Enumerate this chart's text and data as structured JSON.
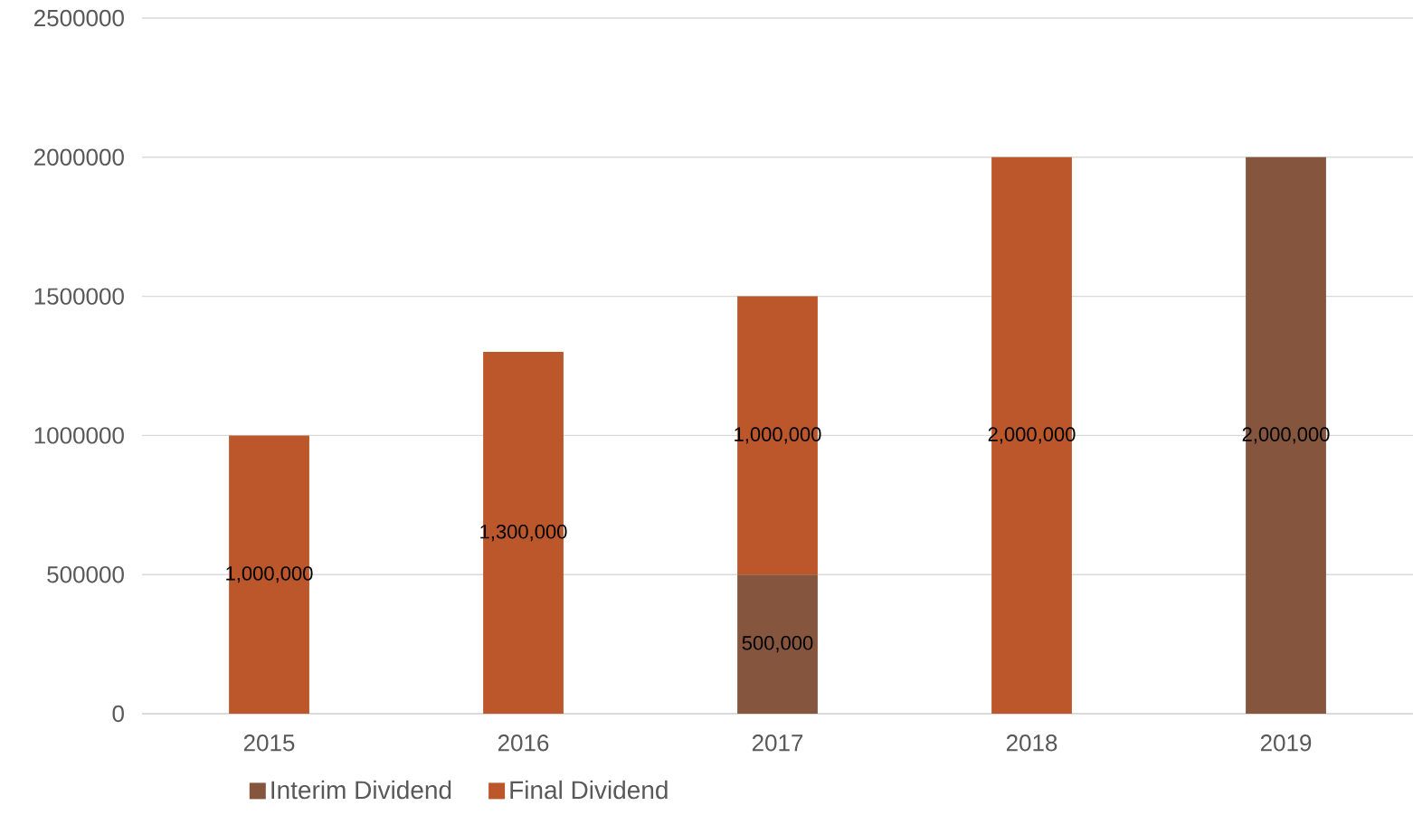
{
  "chart_data": {
    "type": "bar",
    "stacked": true,
    "categories": [
      "2015",
      "2016",
      "2017",
      "2018",
      "2019"
    ],
    "series": [
      {
        "name": "Interim Dividend",
        "color": "#85553d",
        "values": [
          null,
          null,
          500000,
          null,
          2000000
        ],
        "value_labels": [
          null,
          null,
          "500,000",
          null,
          "2,000,000"
        ]
      },
      {
        "name": "Final Dividend",
        "color": "#bc572b",
        "values": [
          1000000,
          1300000,
          1000000,
          2000000,
          null
        ],
        "value_labels": [
          "1,000,000",
          "1,300,000",
          "1,000,000",
          "2,000,000",
          null
        ]
      }
    ],
    "ylim": [
      0,
      2500000
    ],
    "yticks": [
      0,
      500000,
      1000000,
      1500000,
      2000000,
      2500000
    ],
    "grid": "y",
    "legend": "bottom"
  }
}
